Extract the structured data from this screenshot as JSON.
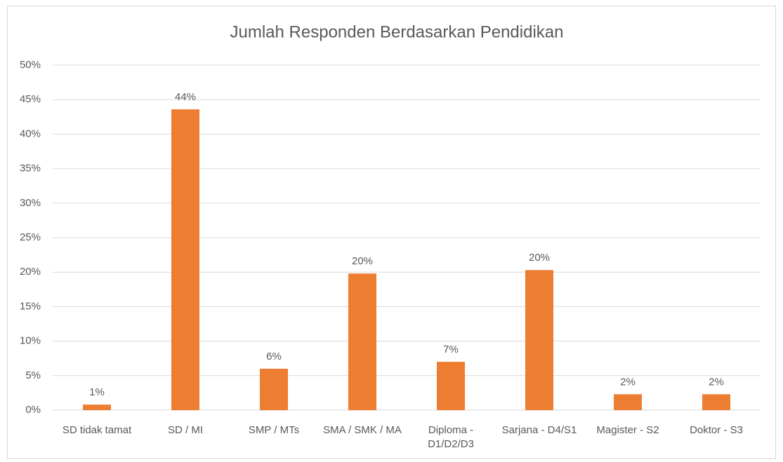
{
  "chart_data": {
    "type": "bar",
    "title": "Jumlah Responden Berdasarkan Pendidikan",
    "categories": [
      "SD tidak tamat",
      "SD / MI",
      "SMP / MTs",
      "SMA / SMK / MA",
      "Diploma - D1/D2/D3",
      "Sarjana - D4/S1",
      "Magister - S2",
      "Doktor - S3"
    ],
    "values": [
      0.8,
      43.6,
      6.0,
      19.8,
      7.0,
      20.3,
      2.3,
      2.3
    ],
    "value_labels": [
      "1%",
      "44%",
      "6%",
      "20%",
      "7%",
      "20%",
      "2%",
      "2%"
    ],
    "color": "#ed7d31",
    "ylim": [
      0,
      50
    ],
    "yticks": [
      {
        "value": 0,
        "label": "0%"
      },
      {
        "value": 5,
        "label": "5%"
      },
      {
        "value": 10,
        "label": "10%"
      },
      {
        "value": 15,
        "label": "15%"
      },
      {
        "value": 20,
        "label": "20%"
      },
      {
        "value": 25,
        "label": "25%"
      },
      {
        "value": 30,
        "label": "30%"
      },
      {
        "value": 35,
        "label": "35%"
      },
      {
        "value": 40,
        "label": "40%"
      },
      {
        "value": 45,
        "label": "45%"
      },
      {
        "value": 50,
        "label": "50%"
      }
    ],
    "grid": true
  }
}
